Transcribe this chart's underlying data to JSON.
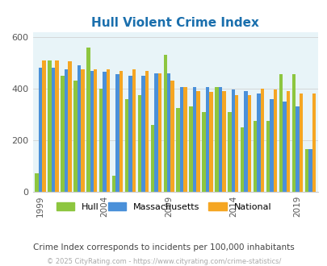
{
  "title": "Hull Violent Crime Index",
  "subtitle": "Crime Index corresponds to incidents per 100,000 inhabitants",
  "footer": "© 2025 CityRating.com - https://www.cityrating.com/crime-statistics/",
  "years": [
    1999,
    2000,
    2001,
    2002,
    2003,
    2004,
    2005,
    2006,
    2007,
    2008,
    2009,
    2010,
    2011,
    2012,
    2013,
    2014,
    2015,
    2016,
    2017,
    2018,
    2019,
    2020
  ],
  "hull": [
    70,
    510,
    450,
    430,
    560,
    400,
    60,
    360,
    375,
    260,
    530,
    325,
    330,
    310,
    405,
    310,
    250,
    275,
    275,
    455,
    455,
    165
  ],
  "massachusetts": [
    480,
    480,
    475,
    490,
    470,
    465,
    455,
    450,
    450,
    460,
    460,
    405,
    405,
    405,
    405,
    395,
    390,
    380,
    360,
    350,
    330,
    165
  ],
  "national": [
    510,
    510,
    505,
    475,
    475,
    475,
    470,
    475,
    470,
    460,
    430,
    405,
    390,
    387,
    390,
    375,
    375,
    398,
    395,
    390,
    380,
    380
  ],
  "hull_color": "#8dc63f",
  "mass_color": "#4a90d9",
  "natl_color": "#f5a623",
  "bg_color": "#e8f4f8",
  "title_color": "#1a6fad",
  "subtitle_color": "#444444",
  "footer_color": "#aaaaaa",
  "ylim": [
    0,
    620
  ],
  "yticks": [
    0,
    200,
    400,
    600
  ],
  "tick_years": [
    1999,
    2004,
    2009,
    2014,
    2019
  ],
  "grid_color": "#cccccc"
}
